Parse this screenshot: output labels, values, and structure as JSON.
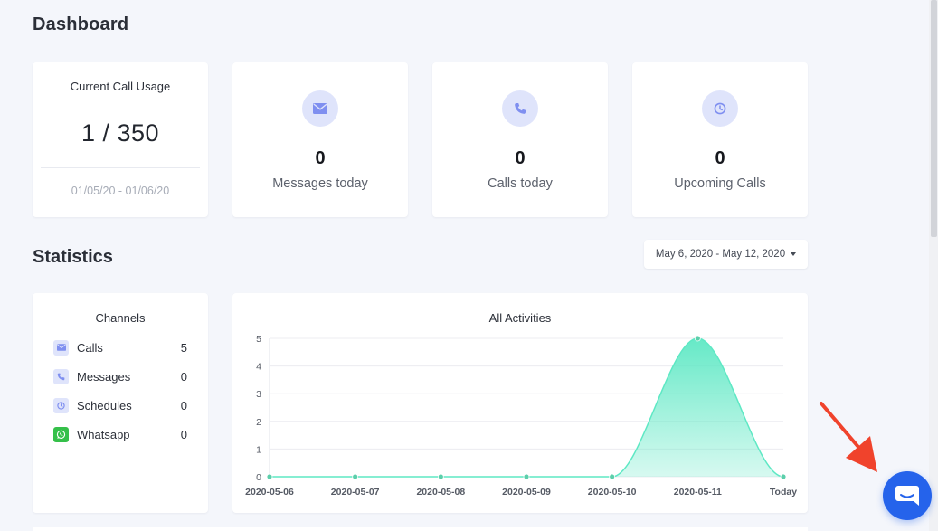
{
  "page": {
    "title": "Dashboard"
  },
  "usage": {
    "label": "Current Call Usage",
    "value": "1 / 350",
    "range": "01/05/20 - 01/06/20"
  },
  "stats": [
    {
      "icon": "envelope-icon",
      "value": "0",
      "label": "Messages today"
    },
    {
      "icon": "phone-icon",
      "value": "0",
      "label": "Calls today"
    },
    {
      "icon": "clock-icon",
      "value": "0",
      "label": "Upcoming Calls"
    }
  ],
  "statistics": {
    "title": "Statistics",
    "date_range": "May 6, 2020 - May 12, 2020"
  },
  "channels": {
    "title": "Channels",
    "items": [
      {
        "icon": "envelope-icon",
        "name": "Calls",
        "count": "5"
      },
      {
        "icon": "phone-icon",
        "name": "Messages",
        "count": "0"
      },
      {
        "icon": "clock-icon",
        "name": "Schedules",
        "count": "0"
      },
      {
        "icon": "whatsapp-icon",
        "name": "Whatsapp",
        "count": "0"
      }
    ]
  },
  "chart_data": {
    "type": "area",
    "title": "All Activities",
    "categories": [
      "2020-05-06",
      "2020-05-07",
      "2020-05-08",
      "2020-05-09",
      "2020-05-10",
      "2020-05-11",
      "Today"
    ],
    "series": [
      {
        "values": [
          0,
          0,
          0,
          0,
          0,
          5,
          0
        ],
        "color": "#5ee8c4"
      }
    ],
    "y_ticks": [
      "0",
      "1",
      "2",
      "3",
      "4",
      "5"
    ],
    "ylim": [
      0,
      5
    ],
    "grid": true,
    "legend": "none"
  },
  "colors": {
    "accent": "#2563eb",
    "icon_bg": "#dfe4fb",
    "icon_fg": "#7f8ff0",
    "area": "#5ee8c4",
    "annotation": "#f0432c"
  }
}
